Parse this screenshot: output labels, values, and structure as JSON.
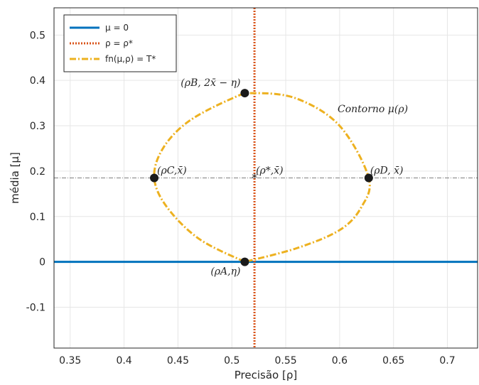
{
  "chart_data": {
    "type": "line",
    "title": "",
    "xlabel": "Precisão [ρ]",
    "ylabel": "média [μ]",
    "xlim": [
      0.335,
      0.728
    ],
    "ylim": [
      -0.19,
      0.56
    ],
    "xticks": [
      "0.35",
      "0.4",
      "0.45",
      "0.5",
      "0.55",
      "0.6",
      "0.65",
      "0.7"
    ],
    "xtick_values": [
      0.35,
      0.4,
      0.45,
      0.5,
      0.55,
      0.6,
      0.65,
      0.7
    ],
    "yticks": [
      "-0.1",
      "0",
      "0.1",
      "0.2",
      "0.3",
      "0.4",
      "0.5"
    ],
    "ytick_values": [
      -0.1,
      0,
      0.1,
      0.2,
      0.3,
      0.4,
      0.5
    ],
    "grid": true,
    "legend_position": "top-left",
    "series": [
      {
        "name": "μ = 0",
        "style": "solid",
        "color": "#0072bd",
        "kind": "hline",
        "y": 0
      },
      {
        "name": "ρ = ρ*",
        "style": "dotted",
        "color": "#d95319",
        "kind": "vline",
        "x": 0.521
      },
      {
        "name": "fn(μ,ρ) = T*",
        "style": "dashdot",
        "color": "#edb120",
        "kind": "contour",
        "x": [
          0.512,
          0.47,
          0.44,
          0.428,
          0.436,
          0.46,
          0.5,
          0.52,
          0.56,
          0.6,
          0.627,
          0.62,
          0.6,
          0.56,
          0.512
        ],
        "y": [
          0.0,
          0.05,
          0.12,
          0.185,
          0.25,
          0.31,
          0.36,
          0.372,
          0.36,
          0.3,
          0.185,
          0.12,
          0.07,
          0.03,
          0.0
        ]
      }
    ],
    "reference_line": {
      "y": 0.185,
      "style": "dashdot",
      "color": "#7f7f7f"
    },
    "points": [
      {
        "label": "(ρA,η)",
        "x": 0.512,
        "y": 0.0
      },
      {
        "label": "(ρB, 2x̄ − η)",
        "x": 0.512,
        "y": 0.372
      },
      {
        "label": "(ρC,x̄)",
        "x": 0.428,
        "y": 0.185
      },
      {
        "label": "(ρD, x̄)",
        "x": 0.627,
        "y": 0.185
      }
    ],
    "star_point": {
      "label": "(ρ*,x̄)",
      "x": 0.521,
      "y": 0.185
    },
    "annotation": "Contorno μ(ρ)"
  },
  "legend": [
    {
      "label": "μ = 0",
      "color": "#0072bd",
      "style": "solid"
    },
    {
      "label": "ρ = ρ*",
      "color": "#d95319",
      "style": "dotted"
    },
    {
      "label": "fn(μ,ρ) = T*",
      "color": "#edb120",
      "style": "dashdot"
    }
  ]
}
